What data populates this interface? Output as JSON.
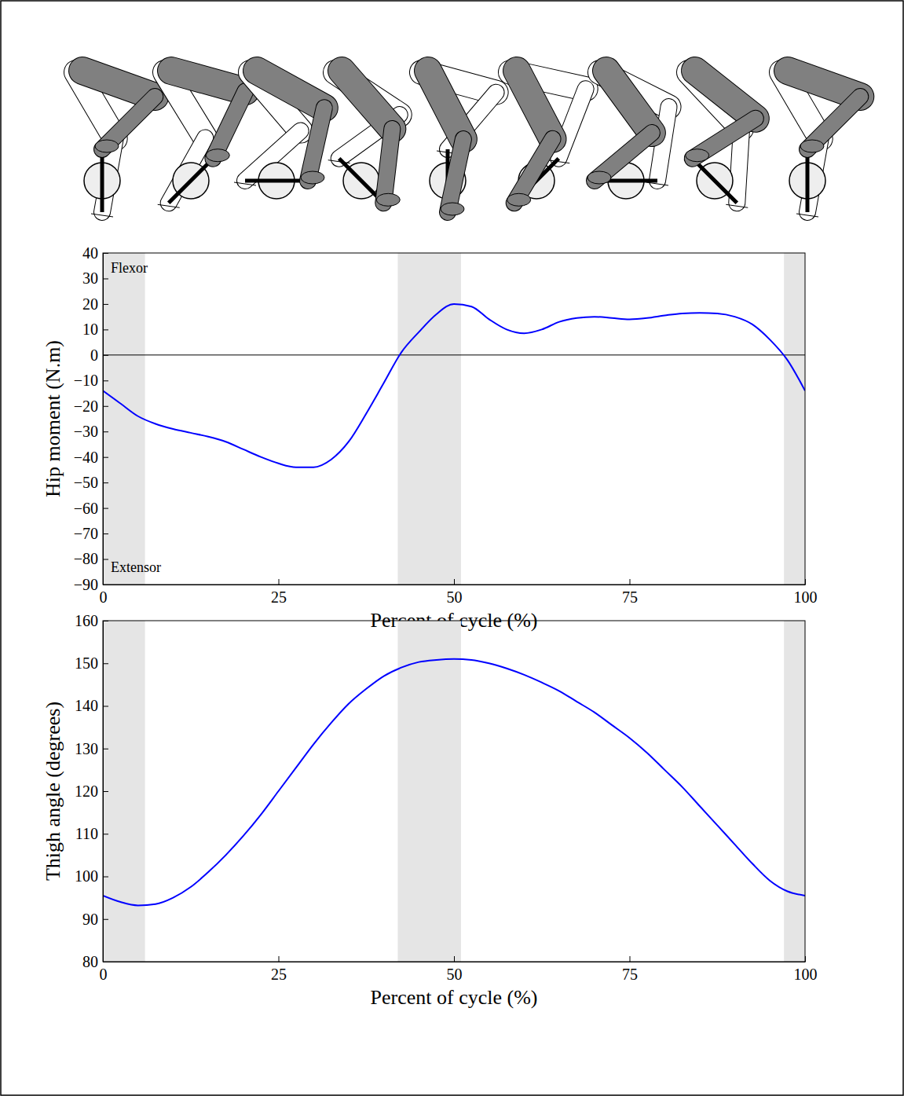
{
  "chart_data": [
    {
      "type": "line",
      "x_label": "Percent of cycle (%)",
      "y_label": "Hip moment (N.m)",
      "annotations": [
        "Flexor",
        "Extensor"
      ],
      "color": "#0000ff",
      "x": [
        0,
        2.5,
        5,
        7.5,
        10,
        12.5,
        15,
        17.5,
        20,
        22.5,
        25,
        27.5,
        30,
        32.5,
        35,
        37.5,
        40,
        42.5,
        45,
        47.5,
        50,
        52.5,
        55,
        57.5,
        60,
        62.5,
        65,
        67.5,
        70,
        72.5,
        75,
        77.5,
        80,
        82.5,
        85,
        87.5,
        90,
        92.5,
        95,
        97.5,
        100
      ],
      "values": [
        -14,
        -19,
        -24,
        -27,
        -29,
        -30.5,
        -32,
        -34,
        -37,
        -40,
        -42.5,
        -44,
        -44,
        -41,
        -34,
        -23,
        -11,
        1,
        9,
        16,
        20,
        19,
        14,
        10,
        8.5,
        10,
        13,
        14.5,
        15,
        14.5,
        14,
        14.5,
        15.5,
        16.3,
        16.5,
        16.3,
        15,
        12,
        6,
        -2,
        -14
      ],
      "spans": [
        [
          0,
          6
        ],
        [
          42,
          51
        ],
        [
          97,
          100
        ]
      ],
      "reference_line": 0,
      "xlim": [
        0,
        100
      ],
      "xticks": [
        0,
        25,
        50,
        75,
        100
      ],
      "ylim": [
        -90,
        40
      ],
      "yticks": [
        40,
        30,
        20,
        10,
        0,
        {
          "value": -10,
          "label": "−10"
        },
        {
          "value": -20,
          "label": "−20"
        },
        {
          "value": -30,
          "label": "−30"
        },
        {
          "value": -40,
          "label": "−40"
        },
        {
          "value": -50,
          "label": "−50"
        },
        {
          "value": -60,
          "label": "−60"
        },
        {
          "value": -70,
          "label": "−70"
        },
        {
          "value": -80,
          "label": "−80"
        },
        {
          "value": -90,
          "label": "−90"
        }
      ],
      "grid": false
    },
    {
      "type": "line",
      "x_label": "Percent of cycle (%)",
      "y_label": "Thigh angle (degrees)",
      "color": "#0000ff",
      "x": [
        0,
        2.5,
        5,
        7.5,
        10,
        12.5,
        15,
        17.5,
        20,
        22.5,
        25,
        27.5,
        30,
        32.5,
        35,
        37.5,
        40,
        42.5,
        45,
        47.5,
        50,
        52.5,
        55,
        57.5,
        60,
        62.5,
        65,
        67.5,
        70,
        72.5,
        75,
        77.5,
        80,
        82.5,
        85,
        87.5,
        90,
        92.5,
        95,
        97.5,
        100
      ],
      "values": [
        95.5,
        94,
        93.2,
        93.5,
        95,
        97.5,
        101,
        105,
        109.5,
        114.5,
        120,
        125.5,
        131,
        136,
        140.5,
        144,
        147,
        149,
        150.3,
        150.8,
        151,
        150.8,
        150,
        148.8,
        147.3,
        145.5,
        143.5,
        141,
        138.5,
        135.5,
        132.5,
        129,
        125,
        121,
        116.5,
        112,
        107.5,
        103,
        99,
        96.5,
        95.5
      ],
      "spans": [
        [
          0,
          6
        ],
        [
          42,
          51
        ],
        [
          97,
          100
        ]
      ],
      "xlim": [
        0,
        100
      ],
      "xticks": [
        0,
        25,
        50,
        75,
        100
      ],
      "ylim": [
        80,
        160
      ],
      "yticks": [
        160,
        150,
        140,
        130,
        120,
        110,
        100,
        90,
        80
      ],
      "grid": false
    }
  ]
}
